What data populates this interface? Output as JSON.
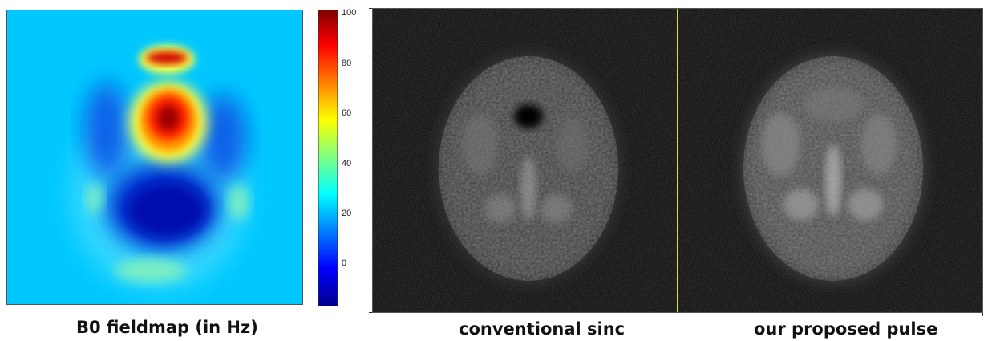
{
  "fieldmap": {
    "caption": "B0 fieldmap (in Hz)",
    "colorbar_ticks": [
      "100",
      "80",
      "60",
      "40",
      "20",
      "0"
    ],
    "colormap": "jet",
    "background_color": "#00c8ff"
  },
  "images": {
    "left_caption": "conventional sinc",
    "right_caption": "our proposed pulse",
    "divider_color": "#e8e000",
    "background_color": "#050505"
  }
}
